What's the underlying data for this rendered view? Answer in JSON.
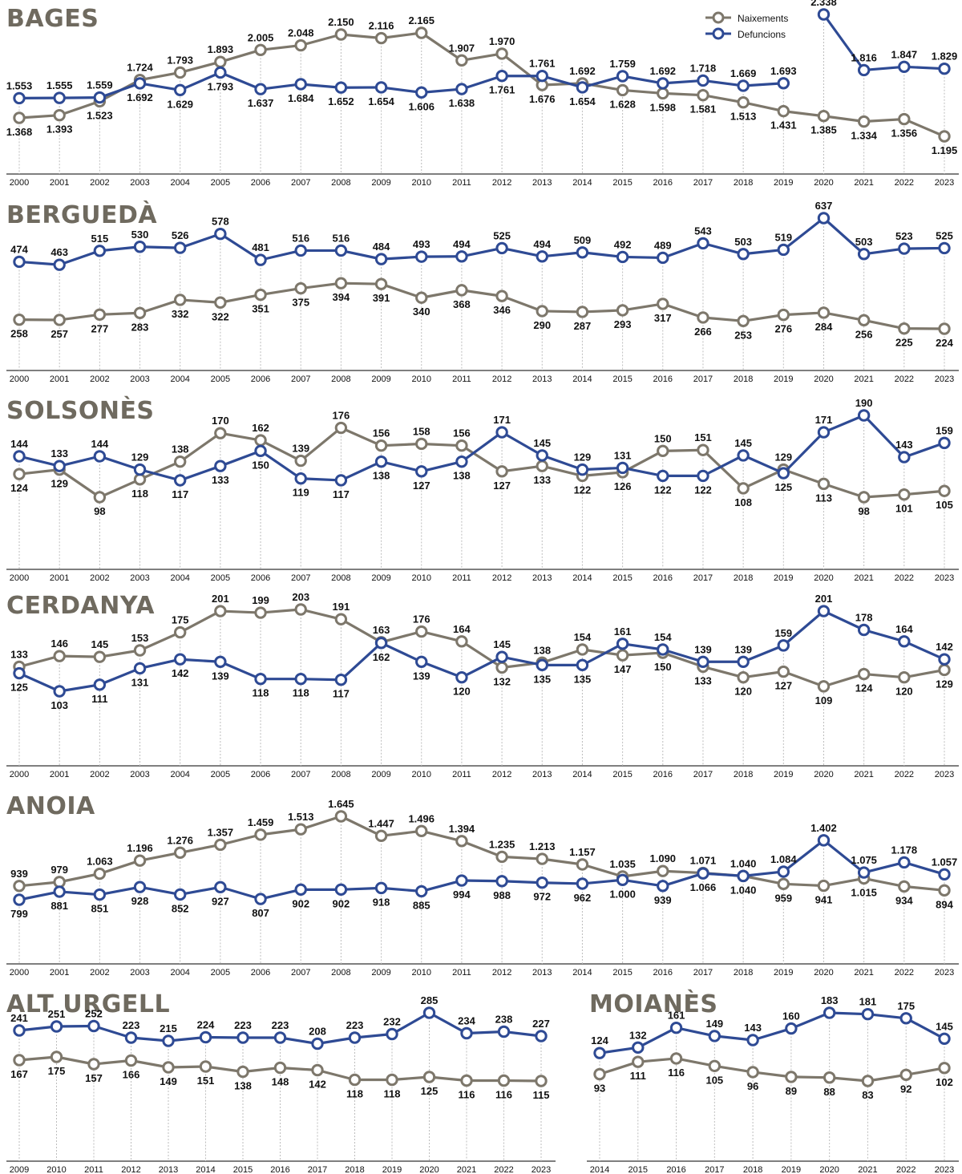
{
  "legend": {
    "births_label": "Naixements",
    "deaths_label": "Defuncions"
  },
  "colors": {
    "births": "#7d776b",
    "deaths": "#2e4a94",
    "gridline": "#bdbdbd",
    "axis": "#555555",
    "title": "#6f6a5f",
    "label": "#111111"
  },
  "chart_data": [
    {
      "type": "line",
      "title": "BAGES",
      "categories": [
        "2000",
        "2001",
        "2002",
        "2003",
        "2004",
        "2005",
        "2006",
        "2007",
        "2008",
        "2009",
        "2010",
        "2011",
        "2012",
        "2013",
        "2014",
        "2015",
        "2016",
        "2017",
        "2018",
        "2019",
        "2020",
        "2021",
        "2022",
        "2023"
      ],
      "series": [
        {
          "name": "Naixements",
          "values": [
            1368,
            1393,
            1523,
            1724,
            1793,
            1893,
            2005,
            2048,
            2150,
            2116,
            2165,
            1907,
            1970,
            1676,
            1692,
            1628,
            1598,
            1581,
            1513,
            1431,
            1385,
            1334,
            1356,
            1195
          ],
          "labels": [
            "1.368",
            "1.393",
            "1.523",
            "1.724",
            "1.793",
            "1.893",
            "2.005",
            "2.048",
            "2.150",
            "2.116",
            "2.165",
            "1.907",
            "1.970",
            "1.676",
            "1.692",
            "1.628",
            "1.598",
            "1.581",
            "1.513",
            "1.431",
            "1.385",
            "1.334",
            "1.356",
            "1.195"
          ]
        },
        {
          "name": "Defuncions",
          "values": [
            1553,
            1555,
            1559,
            1692,
            1629,
            1793,
            1637,
            1684,
            1652,
            1654,
            1606,
            1638,
            1761,
            1761,
            1654,
            1759,
            1692,
            1718,
            1669,
            1693,
            2338,
            1816,
            1847,
            1829
          ],
          "labels": [
            "1.553",
            "1.555",
            "1.559",
            "1.692",
            "1.629",
            "1.793",
            "1.637",
            "1.684",
            "1.652",
            "1.654",
            "1.606",
            "1.638",
            "1.761",
            "1.761",
            "1.654",
            "1.759",
            "1.692",
            "1.718",
            "1.669",
            "1.693",
            "2.338",
            "1.816",
            "1.847",
            "1.829"
          ]
        }
      ]
    },
    {
      "type": "line",
      "title": "BERGUEDÀ",
      "categories": [
        "2000",
        "2001",
        "2002",
        "2003",
        "2004",
        "2005",
        "2006",
        "2007",
        "2008",
        "2009",
        "2010",
        "2011",
        "2012",
        "2013",
        "2014",
        "2015",
        "2016",
        "2017",
        "2018",
        "2019",
        "2020",
        "2021",
        "2022",
        "2023"
      ],
      "series": [
        {
          "name": "Naixements",
          "values": [
            258,
            257,
            277,
            283,
            332,
            322,
            351,
            375,
            394,
            391,
            340,
            368,
            346,
            290,
            287,
            293,
            317,
            266,
            253,
            276,
            284,
            256,
            225,
            224
          ],
          "labels": [
            "258",
            "257",
            "277",
            "283",
            "332",
            "322",
            "351",
            "375",
            "394",
            "391",
            "340",
            "368",
            "346",
            "290",
            "287",
            "293",
            "317",
            "266",
            "253",
            "276",
            "284",
            "256",
            "225",
            "224"
          ]
        },
        {
          "name": "Defuncions",
          "values": [
            474,
            463,
            515,
            530,
            526,
            578,
            481,
            516,
            516,
            484,
            493,
            494,
            525,
            494,
            509,
            492,
            489,
            543,
            503,
            519,
            637,
            503,
            523,
            525
          ],
          "labels": [
            "474",
            "463",
            "515",
            "530",
            "526",
            "578",
            "481",
            "516",
            "516",
            "484",
            "493",
            "494",
            "525",
            "494",
            "509",
            "492",
            "489",
            "543",
            "503",
            "519",
            "637",
            "503",
            "523",
            "525"
          ]
        }
      ]
    },
    {
      "type": "line",
      "title": "SOLSONÈS",
      "categories": [
        "2000",
        "2001",
        "2002",
        "2003",
        "2004",
        "2005",
        "2006",
        "2007",
        "2008",
        "2009",
        "2010",
        "2011",
        "2012",
        "2013",
        "2014",
        "2015",
        "2016",
        "2017",
        "2018",
        "2019",
        "2020",
        "2021",
        "2022",
        "2023"
      ],
      "series": [
        {
          "name": "Naixements",
          "values": [
            124,
            129,
            98,
            118,
            138,
            170,
            162,
            139,
            176,
            156,
            158,
            156,
            127,
            133,
            122,
            126,
            150,
            151,
            108,
            129,
            113,
            98,
            101,
            105
          ],
          "labels": [
            "124",
            "129",
            "98",
            "118",
            "138",
            "170",
            "162",
            "139",
            "176",
            "156",
            "158",
            "156",
            "127",
            "133",
            "122",
            "126",
            "150",
            "151",
            "108",
            "129",
            "113",
            "98",
            "101",
            "105"
          ]
        },
        {
          "name": "Defuncions",
          "values": [
            144,
            133,
            144,
            129,
            117,
            133,
            150,
            119,
            117,
            138,
            127,
            138,
            171,
            145,
            129,
            131,
            122,
            122,
            145,
            125,
            171,
            190,
            143,
            159
          ],
          "labels": [
            "144",
            "133",
            "144",
            "129",
            "117",
            "133",
            "150",
            "119",
            "117",
            "138",
            "127",
            "138",
            "171",
            "145",
            "129",
            "131",
            "122",
            "122",
            "145",
            "125",
            "171",
            "190",
            "143",
            "159"
          ]
        }
      ]
    },
    {
      "type": "line",
      "title": "CERDANYA",
      "categories": [
        "2000",
        "2001",
        "2002",
        "2003",
        "2004",
        "2005",
        "2006",
        "2007",
        "2008",
        "2009",
        "2010",
        "2011",
        "2012",
        "2013",
        "2014",
        "2015",
        "2016",
        "2017",
        "2018",
        "2019",
        "2020",
        "2021",
        "2022",
        "2023"
      ],
      "series": [
        {
          "name": "Naixements",
          "values": [
            133,
            146,
            145,
            153,
            175,
            201,
            199,
            203,
            191,
            163,
            176,
            164,
            132,
            138,
            154,
            147,
            150,
            133,
            120,
            127,
            109,
            124,
            120,
            129
          ],
          "labels": [
            "133",
            "146",
            "145",
            "153",
            "175",
            "201",
            "199",
            "203",
            "191",
            "163",
            "176",
            "164",
            "132",
            "138",
            "154",
            "147",
            "150",
            "133",
            "120",
            "127",
            "109",
            "124",
            "120",
            "129"
          ]
        },
        {
          "name": "Defuncions",
          "values": [
            125,
            103,
            111,
            131,
            142,
            139,
            118,
            118,
            117,
            162,
            139,
            120,
            145,
            135,
            135,
            161,
            154,
            139,
            139,
            159,
            201,
            178,
            164,
            142
          ],
          "labels": [
            "125",
            "103",
            "111",
            "131",
            "142",
            "139",
            "118",
            "118",
            "117",
            "162",
            "139",
            "120",
            "145",
            "135",
            "135",
            "161",
            "154",
            "139",
            "139",
            "159",
            "201",
            "178",
            "164",
            "142"
          ]
        }
      ]
    },
    {
      "type": "line",
      "title": "ANOIA",
      "categories": [
        "2000",
        "2001",
        "2002",
        "2003",
        "2004",
        "2005",
        "2006",
        "2007",
        "2008",
        "2009",
        "2010",
        "2011",
        "2012",
        "2013",
        "2014",
        "2015",
        "2016",
        "2017",
        "2018",
        "2019",
        "2020",
        "2021",
        "2022",
        "2023"
      ],
      "series": [
        {
          "name": "Naixements",
          "values": [
            939,
            979,
            1063,
            1196,
            1276,
            1357,
            1459,
            1513,
            1645,
            1447,
            1496,
            1394,
            1235,
            1213,
            1157,
            1035,
            1090,
            1071,
            1040,
            959,
            941,
            1015,
            934,
            894
          ],
          "labels": [
            "939",
            "979",
            "1.063",
            "1.196",
            "1.276",
            "1.357",
            "1.459",
            "1.513",
            "1.645",
            "1.447",
            "1.496",
            "1.394",
            "1.235",
            "1.213",
            "1.157",
            "1.035",
            "1.090",
            "1.071",
            "1.040",
            "959",
            "941",
            "1.015",
            "934",
            "894"
          ]
        },
        {
          "name": "Defuncions",
          "values": [
            799,
            881,
            851,
            928,
            852,
            927,
            807,
            902,
            902,
            918,
            885,
            994,
            988,
            972,
            962,
            1000,
            939,
            1066,
            1040,
            1084,
            1402,
            1075,
            1178,
            1057
          ],
          "labels": [
            "799",
            "881",
            "851",
            "928",
            "852",
            "927",
            "807",
            "902",
            "902",
            "918",
            "885",
            "994",
            "988",
            "972",
            "962",
            "1.000",
            "939",
            "1.066",
            "1.040",
            "1.084",
            "1.402",
            "1.075",
            "1.178",
            "1.057"
          ]
        }
      ]
    },
    {
      "type": "line",
      "title": "ALT URGELL",
      "categories": [
        "2009",
        "2010",
        "2011",
        "2012",
        "2013",
        "2014",
        "2015",
        "2016",
        "2017",
        "2018",
        "2019",
        "2020",
        "2021",
        "2022",
        "2023"
      ],
      "series": [
        {
          "name": "Naixements",
          "values": [
            167,
            175,
            157,
            166,
            149,
            151,
            138,
            148,
            142,
            118,
            118,
            125,
            116,
            116,
            115
          ],
          "labels": [
            "167",
            "175",
            "157",
            "166",
            "149",
            "151",
            "138",
            "148",
            "142",
            "118",
            "118",
            "125",
            "116",
            "116",
            "115"
          ]
        },
        {
          "name": "Defuncions",
          "values": [
            241,
            251,
            252,
            223,
            215,
            224,
            223,
            223,
            208,
            223,
            232,
            285,
            234,
            238,
            227
          ],
          "labels": [
            "241",
            "251",
            "252",
            "223",
            "215",
            "224",
            "223",
            "223",
            "208",
            "223",
            "232",
            "285",
            "234",
            "238",
            "227"
          ]
        }
      ]
    },
    {
      "type": "line",
      "title": "MOIANÈS",
      "categories": [
        "2014",
        "2015",
        "2016",
        "2017",
        "2018",
        "2019",
        "2020",
        "2021",
        "2022",
        "2023"
      ],
      "series": [
        {
          "name": "Naixements",
          "values": [
            93,
            111,
            116,
            105,
            96,
            89,
            88,
            83,
            92,
            102
          ],
          "labels": [
            "93",
            "111",
            "116",
            "105",
            "96",
            "89",
            "88",
            "83",
            "92",
            "102"
          ]
        },
        {
          "name": "Defuncions",
          "values": [
            124,
            132,
            161,
            149,
            143,
            160,
            183,
            181,
            175,
            145
          ],
          "labels": [
            "124",
            "132",
            "161",
            "149",
            "143",
            "160",
            "183",
            "181",
            "175",
            "145"
          ]
        }
      ]
    }
  ]
}
